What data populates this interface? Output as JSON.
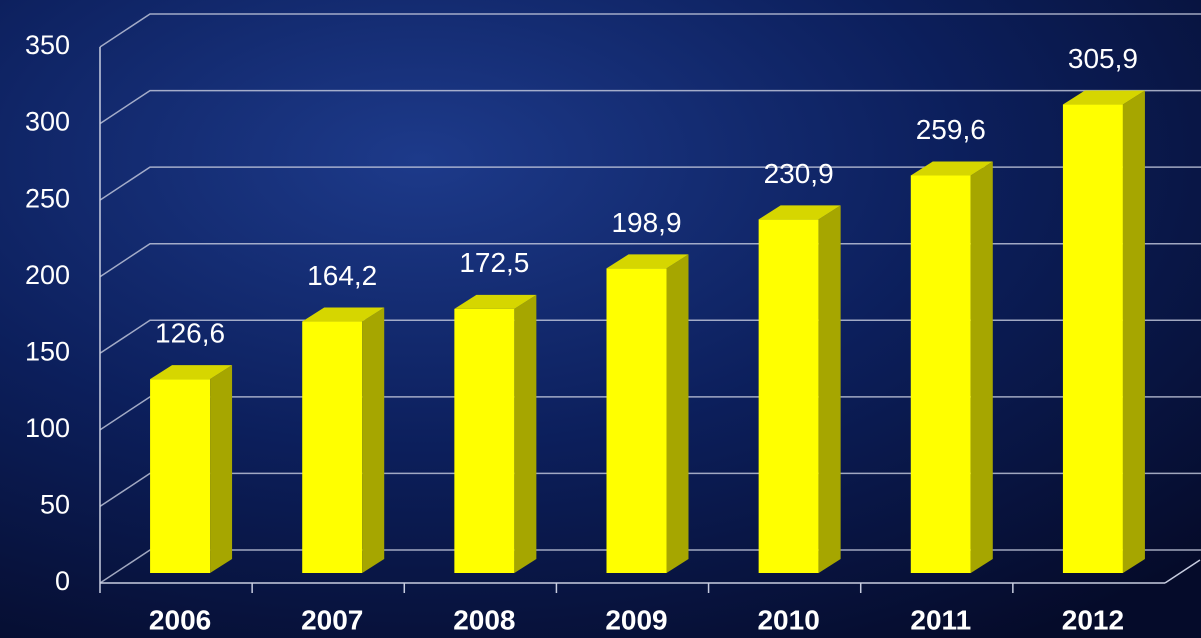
{
  "chart_data": {
    "type": "bar3d",
    "categories": [
      "2006",
      "2007",
      "2008",
      "2009",
      "2010",
      "2011",
      "2012"
    ],
    "values": [
      126.6,
      164.2,
      172.5,
      198.9,
      230.9,
      259.6,
      305.9
    ],
    "value_labels": [
      "126,6",
      "164,2",
      "172,5",
      "198,9",
      "230,9",
      "259,6",
      "305,9"
    ],
    "color": "#ffff00",
    "ylim": [
      0,
      350
    ],
    "yticks": [
      0,
      50,
      100,
      150,
      200,
      250,
      300,
      350
    ],
    "grid": true
  }
}
